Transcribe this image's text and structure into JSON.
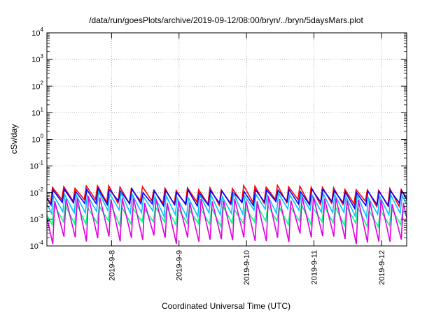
{
  "chart_data": {
    "type": "line",
    "title": "/data/run/goesPlots/archive/2019-09-12/08:00/bryn/../bryn/5daysMars.plot",
    "xlabel": "Coordinated Universal Time (UTC)",
    "ylabel": "cSv/day",
    "y_scale": "log",
    "ylim": [
      0.0001,
      10000
    ],
    "y_ticks": [
      {
        "base": "10",
        "exp": "-4",
        "value": 0.0001
      },
      {
        "base": "10",
        "exp": "-3",
        "value": 0.001
      },
      {
        "base": "10",
        "exp": "-2",
        "value": 0.01
      },
      {
        "base": "10",
        "exp": "-1",
        "value": 0.1
      },
      {
        "base": "10",
        "exp": "0",
        "value": 1
      },
      {
        "base": "10",
        "exp": "1",
        "value": 10
      },
      {
        "base": "10",
        "exp": "2",
        "value": 100
      },
      {
        "base": "10",
        "exp": "3",
        "value": 1000
      },
      {
        "base": "10",
        "exp": "4",
        "value": 10000
      }
    ],
    "xlim": [
      "2019-09-07 01:00",
      "2019-09-12 09:00"
    ],
    "x_ticks": [
      {
        "label": "2019-9-8",
        "value": "2019-09-08 00:00"
      },
      {
        "label": "2019-9-9",
        "value": "2019-09-09 00:00"
      },
      {
        "label": "2019-9-10",
        "value": "2019-09-10 00:00"
      },
      {
        "label": "2019-9-11",
        "value": "2019-09-11 00:00"
      },
      {
        "label": "2019-9-12",
        "value": "2019-09-12 00:00"
      }
    ],
    "grid": true,
    "legend": "none",
    "sawtooth_period_hours": 4,
    "series": [
      {
        "color": "#ff0000",
        "peak_range": [
          0.011,
          0.02
        ],
        "trough_range": [
          0.003,
          0.006
        ]
      },
      {
        "color": "#0000ff",
        "peak_range": [
          0.009,
          0.016
        ],
        "trough_range": [
          0.0025,
          0.005
        ]
      },
      {
        "color": "#00c0ff",
        "peak_range": [
          0.006,
          0.011
        ],
        "trough_range": [
          0.0012,
          0.0025
        ]
      },
      {
        "color": "#00ff80",
        "peak_range": [
          0.002,
          0.004
        ],
        "trough_range": [
          0.0005,
          0.0009
        ]
      },
      {
        "color": "#e000e0",
        "peak_range": [
          0.0035,
          0.008
        ],
        "trough_range": [
          0.0001,
          0.0003
        ]
      }
    ]
  }
}
